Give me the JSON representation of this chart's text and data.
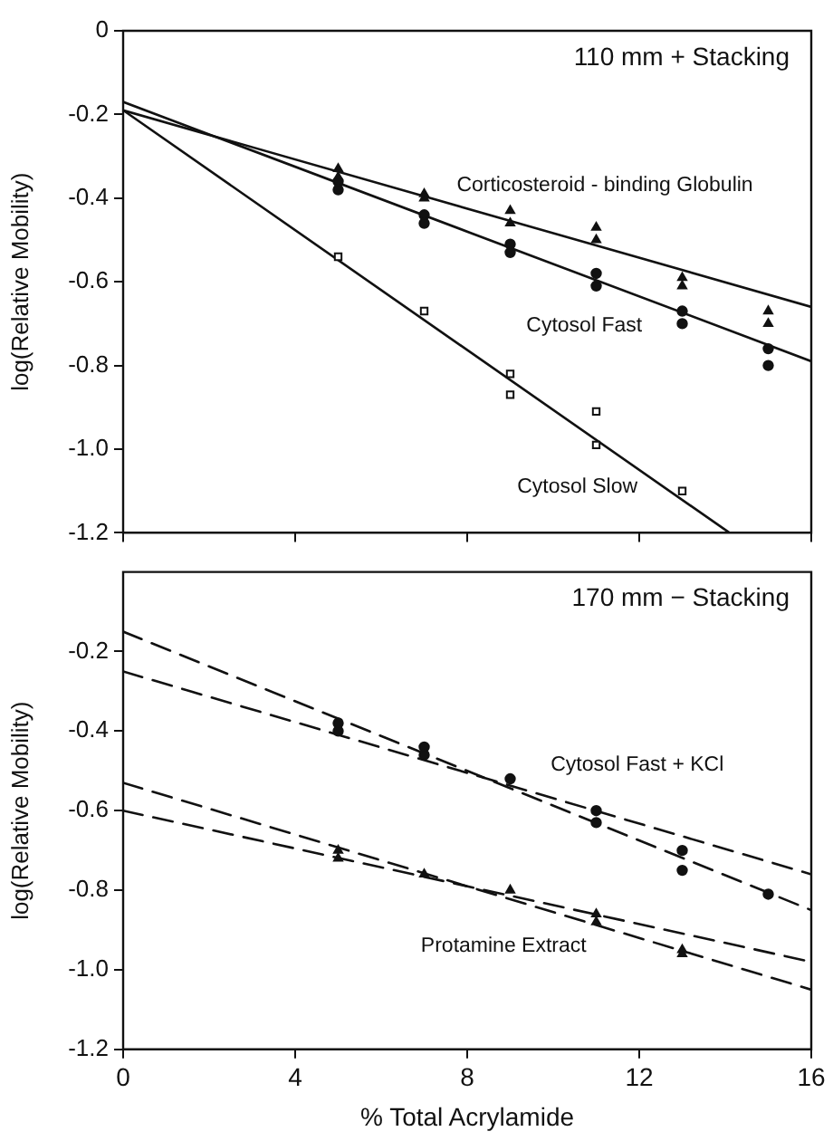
{
  "chart_data": [
    {
      "type": "scatter",
      "title": "110 mm + Stacking",
      "ylabel": "log(Relative Mobility)",
      "xlim": [
        0,
        16
      ],
      "xticks": [
        0,
        4,
        8,
        12,
        16
      ],
      "ylim": [
        -1.2,
        0
      ],
      "yticks": [
        0,
        -0.2,
        -0.4,
        -0.6,
        -0.8,
        {
          "value": -1,
          "label": "-1.0"
        },
        -1.2
      ],
      "tick_labels": "y",
      "line_style": "solid",
      "series": [
        {
          "type": "scatter",
          "name": "Corticosteroid - binding Globulin",
          "marker": "triangle",
          "color": "#111111",
          "x": [
            5,
            5,
            7,
            7,
            9,
            9,
            11,
            11,
            13,
            13,
            15,
            15
          ],
          "values": [
            -0.33,
            -0.35,
            -0.39,
            -0.4,
            -0.43,
            -0.46,
            -0.47,
            -0.5,
            -0.59,
            -0.61,
            -0.67,
            -0.7
          ]
        },
        {
          "type": "scatter",
          "name": "Cytosol Fast",
          "marker": "circle",
          "color": "#111111",
          "x": [
            5,
            5,
            7,
            7,
            9,
            9,
            11,
            11,
            13,
            13,
            15,
            15
          ],
          "values": [
            -0.36,
            -0.38,
            -0.44,
            -0.46,
            -0.51,
            -0.53,
            -0.58,
            -0.61,
            -0.67,
            -0.7,
            -0.76,
            -0.8
          ]
        },
        {
          "type": "scatter",
          "name": "Cytosol Slow",
          "marker": "square",
          "color": "#111111",
          "x": [
            5,
            7,
            9,
            9,
            11,
            11,
            13
          ],
          "values": [
            -0.54,
            -0.67,
            -0.82,
            -0.87,
            -0.91,
            -0.99,
            -1.1
          ]
        },
        {
          "type": "line",
          "marker": "none",
          "color": "#111111",
          "x": [
            0,
            16
          ],
          "values": [
            -0.19,
            -0.66
          ]
        },
        {
          "type": "line",
          "marker": "none",
          "color": "#111111",
          "x": [
            0,
            16
          ],
          "values": [
            -0.17,
            -0.79
          ]
        },
        {
          "type": "line",
          "marker": "none",
          "color": "#111111",
          "x": [
            0,
            14.1
          ],
          "values": [
            -0.19,
            -1.2
          ]
        }
      ]
    },
    {
      "type": "scatter",
      "title": "170 mm − Stacking",
      "xlabel": "% Total Acrylamide",
      "ylabel": "log(Relative Mobility)",
      "xlim": [
        0,
        16
      ],
      "xticks": [
        0,
        4,
        8,
        12,
        16
      ],
      "ylim": [
        -1.2,
        0
      ],
      "yticks": [
        -0.2,
        -0.4,
        -0.6,
        -0.8,
        {
          "value": -1,
          "label": "-1.0"
        },
        -1.2
      ],
      "line_style": "dashed",
      "series": [
        {
          "type": "scatter",
          "name": "Cytosol Fast + KCl",
          "marker": "circle",
          "color": "#111111",
          "x": [
            5,
            5,
            7,
            7,
            9,
            11,
            11,
            13,
            13,
            15
          ],
          "values": [
            -0.38,
            -0.4,
            -0.44,
            -0.46,
            -0.52,
            -0.6,
            -0.63,
            -0.7,
            -0.75,
            -0.81
          ]
        },
        {
          "type": "scatter",
          "name": "Protamine Extract",
          "marker": "triangle",
          "color": "#111111",
          "x": [
            5,
            5,
            7,
            9,
            11,
            11,
            13,
            13
          ],
          "values": [
            -0.7,
            -0.72,
            -0.76,
            -0.8,
            -0.86,
            -0.88,
            -0.95,
            -0.96
          ]
        },
        {
          "type": "line",
          "marker": "none",
          "color": "#111111",
          "x": [
            0,
            16
          ],
          "values": [
            -0.15,
            -0.85
          ]
        },
        {
          "type": "line",
          "marker": "none",
          "color": "#111111",
          "x": [
            0,
            16
          ],
          "values": [
            -0.25,
            -0.76
          ]
        },
        {
          "type": "line",
          "marker": "none",
          "color": "#111111",
          "x": [
            0,
            16
          ],
          "values": [
            -0.53,
            -1.05
          ]
        },
        {
          "type": "line",
          "marker": "none",
          "color": "#111111",
          "x": [
            0,
            16
          ],
          "values": [
            -0.6,
            -0.98
          ]
        }
      ]
    }
  ]
}
